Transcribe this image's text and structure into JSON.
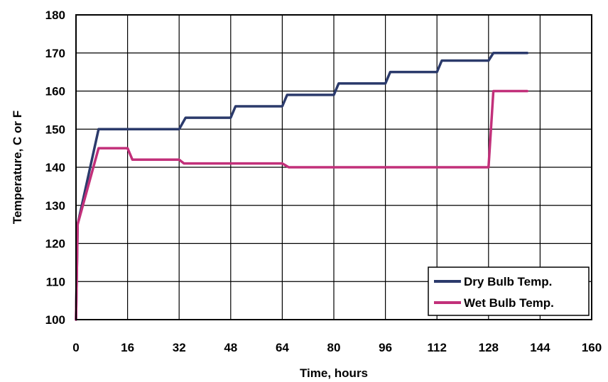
{
  "chart_data": {
    "type": "line",
    "title": "",
    "xlabel": "Time, hours",
    "ylabel": "Temperature, C or F",
    "xlim": [
      0,
      160
    ],
    "ylim": [
      100,
      180
    ],
    "xticks": [
      0,
      16,
      32,
      48,
      64,
      80,
      96,
      112,
      128,
      144,
      160
    ],
    "yticks": [
      100,
      110,
      120,
      130,
      140,
      150,
      160,
      170,
      180
    ],
    "grid": true,
    "legend_position": "bottom-right",
    "series": [
      {
        "name": "Dry Bulb Temp.",
        "color": "#2b3a6b",
        "x": [
          0,
          0.5,
          7,
          16,
          32,
          34,
          48,
          49.5,
          64,
          65.5,
          80,
          81.5,
          96,
          97.5,
          112,
          113.5,
          128,
          129.5,
          140
        ],
        "y": [
          100,
          125,
          150,
          150,
          150,
          153,
          153,
          156,
          156,
          159,
          159,
          162,
          162,
          165,
          165,
          168,
          168,
          170,
          170
        ]
      },
      {
        "name": "Wet Bulb Temp.",
        "color": "#c2307a",
        "x": [
          0,
          0.5,
          7,
          16,
          17.5,
          32,
          33.5,
          64,
          66,
          128,
          129.5,
          140
        ],
        "y": [
          100,
          125,
          145,
          145,
          142,
          142,
          141,
          141,
          140,
          140,
          160,
          160
        ]
      }
    ]
  }
}
